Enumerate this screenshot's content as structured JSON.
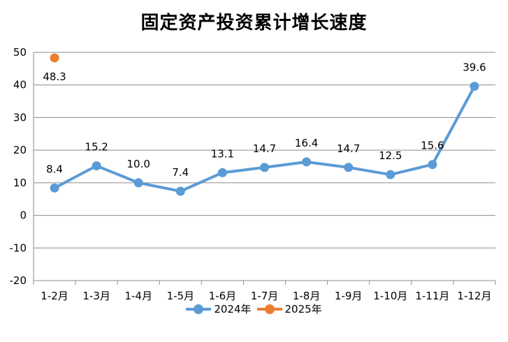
{
  "chart_data": {
    "type": "line",
    "title": "固定资产投资累计增长速度",
    "categories": [
      "1-2月",
      "1-3月",
      "1-4月",
      "1-5月",
      "1-6月",
      "1-7月",
      "1-8月",
      "1-9月",
      "1-10月",
      "1-11月",
      "1-12月"
    ],
    "series": [
      {
        "name": "2024年",
        "color": "#5b9bd5",
        "values": [
          8.4,
          15.2,
          10.0,
          7.4,
          13.1,
          14.7,
          16.4,
          14.7,
          12.5,
          15.6,
          39.6
        ],
        "labels": [
          "8.4",
          "15.2",
          "10.0",
          "7.4",
          "13.1",
          "14.7",
          "16.4",
          "14.7",
          "12.5",
          "15.6",
          "39.6"
        ]
      },
      {
        "name": "2025年",
        "color": "#ed7d31",
        "values": [
          48.3,
          null,
          null,
          null,
          null,
          null,
          null,
          null,
          null,
          null,
          null
        ],
        "labels": [
          "48.3",
          "",
          "",
          "",
          "",
          "",
          "",
          "",
          "",
          "",
          ""
        ]
      }
    ],
    "ylim": [
      -20,
      50
    ],
    "yticks": [
      "50",
      "40",
      "30",
      "20",
      "10",
      "0",
      "-10",
      "-20"
    ],
    "xlabel": "",
    "ylabel": "",
    "grid": true,
    "legend_position": "bottom"
  }
}
